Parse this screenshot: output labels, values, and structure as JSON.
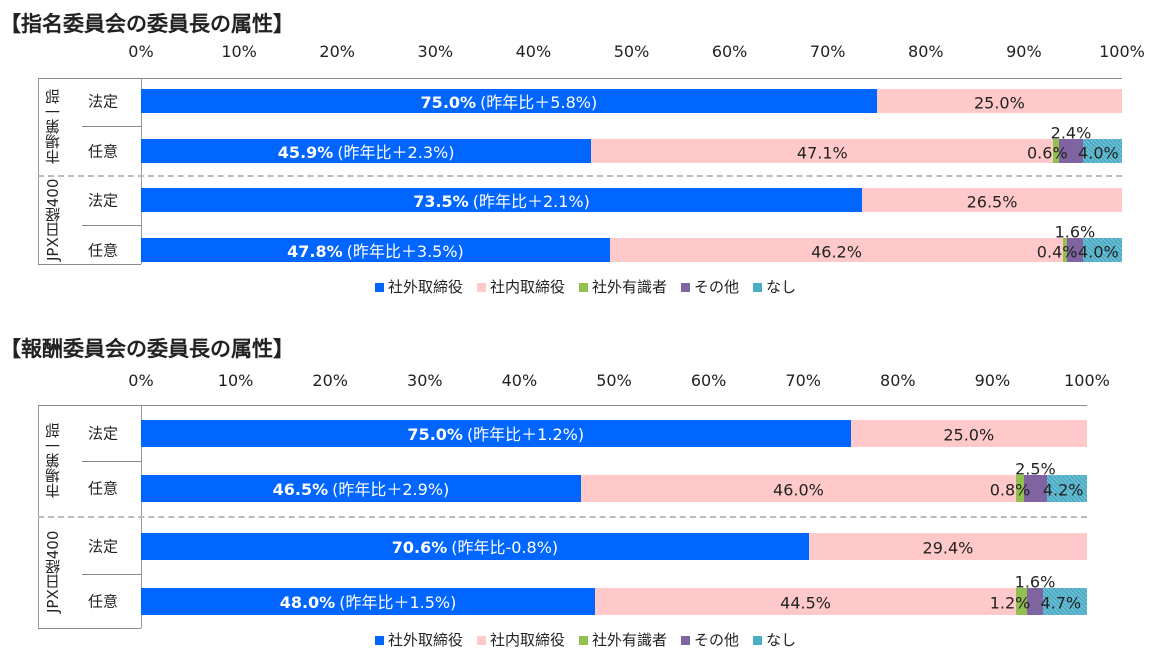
{
  "colors": {
    "社外取締役": "#0066ff",
    "社内取締役": "#ffc9c9",
    "社外有識者": "#92c050",
    "その他": "#8064a2",
    "なし": "#4bacc6"
  },
  "chart_data": [
    {
      "type": "bar",
      "orientation": "horizontal",
      "stacked": true,
      "title": "【指名委員会の委員長の属性】",
      "xlim": [
        0,
        100
      ],
      "xticks": [
        "0%",
        "10%",
        "20%",
        "30%",
        "40%",
        "50%",
        "60%",
        "70%",
        "80%",
        "90%",
        "100%"
      ],
      "groups": [
        "市場第一部",
        "JPX日経400"
      ],
      "categories": [
        {
          "group": "市場第一部",
          "label": "法定"
        },
        {
          "group": "市場第一部",
          "label": "任意"
        },
        {
          "group": "JPX日経400",
          "label": "法定"
        },
        {
          "group": "JPX日経400",
          "label": "任意"
        }
      ],
      "series": [
        {
          "name": "社外取締役",
          "values": [
            75.0,
            45.9,
            73.5,
            47.8
          ]
        },
        {
          "name": "社内取締役",
          "values": [
            25.0,
            47.1,
            26.5,
            46.2
          ]
        },
        {
          "name": "社外有識者",
          "values": [
            0,
            0.6,
            0,
            0.4
          ]
        },
        {
          "name": "その他",
          "values": [
            0,
            2.4,
            0,
            1.6
          ]
        },
        {
          "name": "なし",
          "values": [
            0,
            4.0,
            0,
            4.0
          ]
        }
      ],
      "annotations": [
        "(昨年比＋5.8%)",
        "(昨年比＋2.3%)",
        "(昨年比＋2.1%)",
        "(昨年比＋3.5%)"
      ],
      "legend": "bottom"
    },
    {
      "type": "bar",
      "orientation": "horizontal",
      "stacked": true,
      "title": "【報酬委員会の委員長の属性】",
      "xlim": [
        0,
        100
      ],
      "xticks": [
        "0%",
        "10%",
        "20%",
        "30%",
        "40%",
        "50%",
        "60%",
        "70%",
        "80%",
        "90%",
        "100%"
      ],
      "groups": [
        "市場第一部",
        "JPX日経400"
      ],
      "categories": [
        {
          "group": "市場第一部",
          "label": "法定"
        },
        {
          "group": "市場第一部",
          "label": "任意"
        },
        {
          "group": "JPX日経400",
          "label": "法定"
        },
        {
          "group": "JPX日経400",
          "label": "任意"
        }
      ],
      "series": [
        {
          "name": "社外取締役",
          "values": [
            75.0,
            46.5,
            70.6,
            48.0
          ]
        },
        {
          "name": "社内取締役",
          "values": [
            25.0,
            46.0,
            29.4,
            44.5
          ]
        },
        {
          "name": "社外有識者",
          "values": [
            0,
            0.8,
            0,
            1.2
          ]
        },
        {
          "name": "その他",
          "values": [
            0,
            2.5,
            0,
            1.6
          ]
        },
        {
          "name": "なし",
          "values": [
            0,
            4.2,
            0,
            4.7
          ]
        }
      ],
      "annotations": [
        "(昨年比＋1.2%)",
        "(昨年比＋2.9%)",
        "(昨年比-0.8%)",
        "(昨年比＋1.5%)"
      ],
      "legend": "bottom"
    }
  ]
}
